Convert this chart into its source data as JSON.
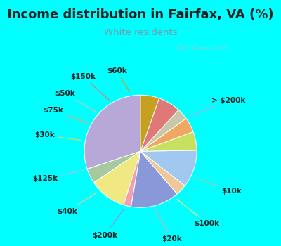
{
  "title": "Income distribution in Fairfax, VA (%)",
  "subtitle": "White residents",
  "bg_cyan": "#00FFFF",
  "bg_chart": "#d8ede0",
  "title_color": "#222222",
  "subtitle_color": "#7a9aaa",
  "labels": [
    "> $200k",
    "$10k",
    "$100k",
    "$20k",
    "$200k",
    "$40k",
    "$125k",
    "$30k",
    "$75k",
    "$50k",
    "$150k",
    "$60k"
  ],
  "values": [
    28,
    4,
    10,
    2,
    13,
    3,
    10,
    5,
    4,
    3,
    6,
    5
  ],
  "colors": [
    "#b8a8d8",
    "#a8c8a0",
    "#f0e880",
    "#f0a0b0",
    "#8898d8",
    "#f0c898",
    "#a0c8f0",
    "#c8e060",
    "#f0a860",
    "#c8c8a8",
    "#e07878",
    "#c8a020"
  ],
  "startangle": 90,
  "watermark": "City-Data.com",
  "label_fontsize": 7.5,
  "title_fontsize": 13,
  "subtitle_fontsize": 9.5
}
